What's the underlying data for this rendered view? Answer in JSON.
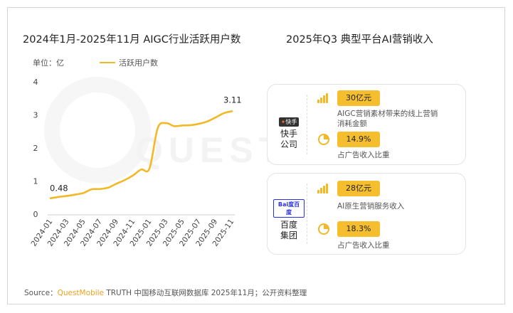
{
  "watermark": "QUESTMOBILE",
  "left_panel": {
    "title": "2024年1月-2025年11月 AIGC行业活跃用户数",
    "unit": "单位：亿",
    "legend": "活跃用户数"
  },
  "chart_data": {
    "type": "line",
    "title": "2024年1月-2025年11月 AIGC行业活跃用户数",
    "ylabel": "单位：亿",
    "ylim": [
      0,
      4
    ],
    "yticks": [
      "0",
      "1",
      "2",
      "3",
      "4"
    ],
    "x_ticks": [
      "2024-01",
      "2024-03",
      "2024-05",
      "2024-07",
      "2024-09",
      "2024-11",
      "2025-01",
      "2025-03",
      "2025-05",
      "2025-07",
      "2025-09",
      "2025-11"
    ],
    "grid": false,
    "series": [
      {
        "name": "活跃用户数",
        "color": "#f2b826",
        "x": [
          "2024-01",
          "2024-02",
          "2024-03",
          "2024-04",
          "2024-05",
          "2024-06",
          "2024-07",
          "2024-08",
          "2024-09",
          "2024-10",
          "2024-11",
          "2024-12",
          "2025-01",
          "2025-02",
          "2025-03",
          "2025-04",
          "2025-05",
          "2025-06",
          "2025-07",
          "2025-08",
          "2025-09",
          "2025-10",
          "2025-11"
        ],
        "values": [
          0.48,
          0.52,
          0.55,
          0.59,
          0.64,
          0.75,
          0.76,
          0.8,
          0.92,
          1.03,
          1.17,
          1.35,
          1.38,
          2.6,
          2.75,
          2.66,
          2.68,
          2.69,
          2.73,
          2.8,
          2.92,
          3.05,
          3.11
        ],
        "labels": {
          "first": "0.48",
          "last": "3.11"
        }
      }
    ]
  },
  "right_panel": {
    "title": "2025年Q3 典型平台AI营销收入",
    "cards": [
      {
        "logo_badge": "快手",
        "company": [
          "快手",
          "公司"
        ],
        "metric1_value": "30亿元",
        "metric1_desc": [
          "AIGC营销素材带来的线上营销",
          "消耗金额"
        ],
        "metric2_value": "14.9%",
        "metric2_desc": "占广告收入比重"
      },
      {
        "logo_badge": "Bai度百度",
        "company": [
          "百度",
          "集团"
        ],
        "metric1_value": "28亿元",
        "metric1_desc": [
          "AI原生营销服务收入"
        ],
        "metric2_value": "18.3%",
        "metric2_desc": "占广告收入比重"
      }
    ]
  },
  "source": {
    "label": "Source：",
    "brand": "QuestMobile",
    "text": " TRUTH 中国移动互联网数据库 2025年11月；公开资料整理"
  },
  "colors": {
    "accent": "#f2b826",
    "pill": "#f5be2e"
  }
}
